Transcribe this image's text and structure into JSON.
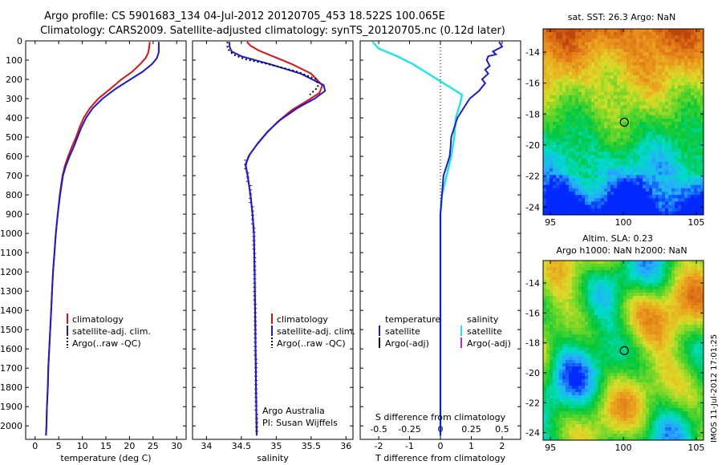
{
  "title": {
    "line1": "Argo profile: CS 5901683_134 04-Jul-2012 20120705_453 18.522S 100.065E",
    "line2": "Climatology: CARS2009. Satellite-adjusted climatology: synTS_20120705.nc (0.12d later)"
  },
  "timestamp": "IMOS 11-Jul-2012 17:01:25",
  "colors": {
    "climatology": "#e01010",
    "satellite": "#1a1ad8",
    "cyan": "#22e6e6",
    "magenta": "#cc22cc",
    "argo": "#000000"
  },
  "chart_data": [
    {
      "type": "line",
      "name": "temperature",
      "xlabel": "temperature (deg C)",
      "ylabel": "",
      "xlim": [
        -2,
        32
      ],
      "ylim": [
        2070,
        0
      ],
      "xticks": [
        0,
        5,
        10,
        15,
        20,
        25,
        30
      ],
      "yticks": [
        0,
        100,
        200,
        300,
        400,
        500,
        600,
        700,
        800,
        900,
        1000,
        1100,
        1200,
        1300,
        1400,
        1500,
        1600,
        1700,
        1800,
        1900,
        2000
      ],
      "legend": {
        "position": "lower-center",
        "entries": [
          "climatology",
          "satellite-adj. clim.",
          "Argo(..raw -QC)"
        ]
      },
      "series": [
        {
          "name": "climatology",
          "color": "climatology",
          "points": [
            [
              24.3,
              5
            ],
            [
              24.2,
              30
            ],
            [
              24.0,
              60
            ],
            [
              23.4,
              90
            ],
            [
              22.3,
              120
            ],
            [
              20.6,
              160
            ],
            [
              18.3,
              200
            ],
            [
              15.9,
              250
            ],
            [
              13.4,
              300
            ],
            [
              11.6,
              350
            ],
            [
              10.3,
              400
            ],
            [
              9.4,
              450
            ],
            [
              8.7,
              500
            ],
            [
              7.8,
              550
            ],
            [
              7.0,
              600
            ],
            [
              6.3,
              650
            ],
            [
              5.8,
              700
            ],
            [
              5.2,
              800
            ],
            [
              4.8,
              900
            ],
            [
              4.4,
              1000
            ],
            [
              4.1,
              1100
            ],
            [
              3.8,
              1200
            ],
            [
              3.6,
              1300
            ],
            [
              3.4,
              1400
            ],
            [
              3.2,
              1500
            ],
            [
              3.0,
              1600
            ],
            [
              2.8,
              1700
            ],
            [
              2.7,
              1800
            ],
            [
              2.5,
              1900
            ],
            [
              2.4,
              2000
            ],
            [
              2.3,
              2050
            ]
          ]
        },
        {
          "name": "satellite-adj. clim.",
          "color": "satellite",
          "points": [
            [
              26.2,
              5
            ],
            [
              26.2,
              30
            ],
            [
              26.2,
              60
            ],
            [
              25.8,
              90
            ],
            [
              24.8,
              120
            ],
            [
              22.8,
              160
            ],
            [
              20.2,
              200
            ],
            [
              17.0,
              250
            ],
            [
              14.3,
              300
            ],
            [
              12.2,
              350
            ],
            [
              10.8,
              400
            ],
            [
              9.8,
              450
            ],
            [
              9.0,
              500
            ],
            [
              8.2,
              550
            ],
            [
              7.3,
              600
            ],
            [
              6.5,
              650
            ],
            [
              5.9,
              700
            ],
            [
              5.3,
              800
            ],
            [
              4.8,
              900
            ],
            [
              4.4,
              1000
            ],
            [
              4.1,
              1100
            ],
            [
              3.8,
              1200
            ],
            [
              3.6,
              1300
            ],
            [
              3.4,
              1400
            ],
            [
              3.2,
              1500
            ],
            [
              3.0,
              1600
            ],
            [
              2.8,
              1700
            ],
            [
              2.7,
              1800
            ],
            [
              2.5,
              1900
            ],
            [
              2.4,
              2000
            ],
            [
              2.3,
              2050
            ]
          ]
        }
      ]
    },
    {
      "type": "line",
      "name": "salinity",
      "xlabel": "salinity",
      "ylabel": "",
      "xlim": [
        33.8,
        36.1
      ],
      "ylim": [
        2070,
        0
      ],
      "xticks": [
        34,
        34.5,
        35,
        35.5,
        36
      ],
      "legend": {
        "position": "lower-center",
        "entries": [
          "climatology",
          "satellite-adj. clim.",
          "Argo(..raw -QC)"
        ]
      },
      "annotations": [
        "Argo Australia",
        "PI: Susan Wijffels"
      ],
      "series": [
        {
          "name": "climatology",
          "color": "climatology",
          "points": [
            [
              34.58,
              5
            ],
            [
              34.63,
              25
            ],
            [
              34.75,
              50
            ],
            [
              34.95,
              80
            ],
            [
              35.22,
              120
            ],
            [
              35.5,
              170
            ],
            [
              35.66,
              230
            ],
            [
              35.62,
              270
            ],
            [
              35.45,
              310
            ],
            [
              35.22,
              360
            ],
            [
              35.02,
              420
            ],
            [
              34.86,
              480
            ],
            [
              34.72,
              540
            ],
            [
              34.6,
              600
            ],
            [
              34.56,
              650
            ],
            [
              34.59,
              700
            ],
            [
              34.63,
              800
            ],
            [
              34.66,
              900
            ],
            [
              34.68,
              1000
            ],
            [
              34.69,
              1200
            ],
            [
              34.7,
              1500
            ],
            [
              34.71,
              1800
            ],
            [
              34.72,
              2050
            ]
          ]
        },
        {
          "name": "satellite-adj. clim.",
          "color": "satellite",
          "points": [
            [
              34.33,
              5
            ],
            [
              34.33,
              30
            ],
            [
              34.36,
              55
            ],
            [
              34.5,
              80
            ],
            [
              34.9,
              120
            ],
            [
              35.35,
              170
            ],
            [
              35.68,
              230
            ],
            [
              35.7,
              260
            ],
            [
              35.55,
              300
            ],
            [
              35.3,
              350
            ],
            [
              35.06,
              410
            ],
            [
              34.88,
              470
            ],
            [
              34.74,
              530
            ],
            [
              34.62,
              590
            ],
            [
              34.56,
              640
            ],
            [
              34.59,
              700
            ],
            [
              34.63,
              800
            ],
            [
              34.66,
              900
            ],
            [
              34.68,
              1000
            ],
            [
              34.69,
              1200
            ],
            [
              34.7,
              1500
            ],
            [
              34.71,
              1800
            ],
            [
              34.72,
              2050
            ]
          ]
        },
        {
          "name": "Argo(..raw -QC)",
          "color": "argo",
          "dashed": true,
          "points": [
            [
              34.3,
              5
            ],
            [
              34.3,
              40
            ],
            [
              34.38,
              70
            ],
            [
              34.55,
              95
            ],
            [
              34.88,
              120
            ],
            [
              35.3,
              160
            ],
            [
              35.58,
              200
            ],
            [
              35.6,
              240
            ],
            [
              35.48,
              280
            ]
          ]
        }
      ]
    },
    {
      "type": "line",
      "name": "differences",
      "xlabel": "T difference from climatology",
      "xlabel_top": "S difference from climatology",
      "xlim": [
        -2.6,
        2.6
      ],
      "xticks": [
        -2,
        -1,
        0,
        1,
        2
      ],
      "xticks_s": [
        -0.5,
        -0.25,
        0,
        0.25,
        0.5
      ],
      "xtick_labels_s": [
        "-0.5",
        "-0.25",
        "0",
        "0.25",
        "0.5"
      ],
      "legend": {
        "position": "lower-center",
        "groups": [
          "temperature",
          "salinity"
        ],
        "entries": [
          "satellite",
          "Argo(-adj)",
          "satellite",
          "Argo(-adj)"
        ]
      },
      "series": [
        {
          "name": "T satellite",
          "color": "satellite",
          "points": [
            [
              1.9,
              5
            ],
            [
              2.0,
              30
            ],
            [
              1.7,
              55
            ],
            [
              1.8,
              70
            ],
            [
              1.55,
              80
            ],
            [
              1.5,
              100
            ],
            [
              1.6,
              130
            ],
            [
              1.45,
              150
            ],
            [
              1.55,
              170
            ],
            [
              1.35,
              200
            ],
            [
              1.45,
              220
            ],
            [
              1.25,
              260
            ],
            [
              0.95,
              300
            ],
            [
              0.75,
              350
            ],
            [
              0.55,
              400
            ],
            [
              0.45,
              450
            ],
            [
              0.35,
              500
            ],
            [
              0.33,
              550
            ],
            [
              0.3,
              600
            ],
            [
              0.2,
              650
            ],
            [
              0.1,
              700
            ],
            [
              0.05,
              800
            ],
            [
              0.0,
              900
            ],
            [
              0.0,
              2050
            ]
          ]
        },
        {
          "name": "S satellite",
          "color": "cyan",
          "points": [
            [
              -2.2,
              5
            ],
            [
              -2.0,
              40
            ],
            [
              -1.4,
              80
            ],
            [
              -0.9,
              120
            ],
            [
              -0.3,
              180
            ],
            [
              0.3,
              240
            ],
            [
              0.7,
              280
            ],
            [
              0.65,
              320
            ],
            [
              0.5,
              400
            ],
            [
              0.45,
              500
            ],
            [
              0.35,
              600
            ],
            [
              0.2,
              700
            ],
            [
              0.05,
              800
            ],
            [
              0.0,
              900
            ],
            [
              0.0,
              2050
            ]
          ]
        }
      ]
    },
    {
      "type": "heatmap",
      "name": "sst-map",
      "title": "sat. SST: 26.3 Argo: NaN",
      "xlim": [
        94.5,
        105.5
      ],
      "ylim": [
        -24.5,
        -12.5
      ],
      "xticks": [
        95,
        100,
        105
      ],
      "yticks": [
        -14,
        -16,
        -18,
        -20,
        -22,
        -24
      ],
      "marker": [
        100.065,
        -18.522
      ]
    },
    {
      "type": "heatmap",
      "name": "sla-map",
      "title_line1": "Altim. SLA: 0.23",
      "title_line2": "Argo h1000: NaN h2000: NaN",
      "xlim": [
        94.5,
        105.5
      ],
      "ylim": [
        -24.5,
        -12.5
      ],
      "xticks": [
        95,
        100,
        105
      ],
      "yticks": [
        -14,
        -16,
        -18,
        -20,
        -22,
        -24
      ],
      "marker": [
        100.065,
        -18.522
      ]
    }
  ]
}
